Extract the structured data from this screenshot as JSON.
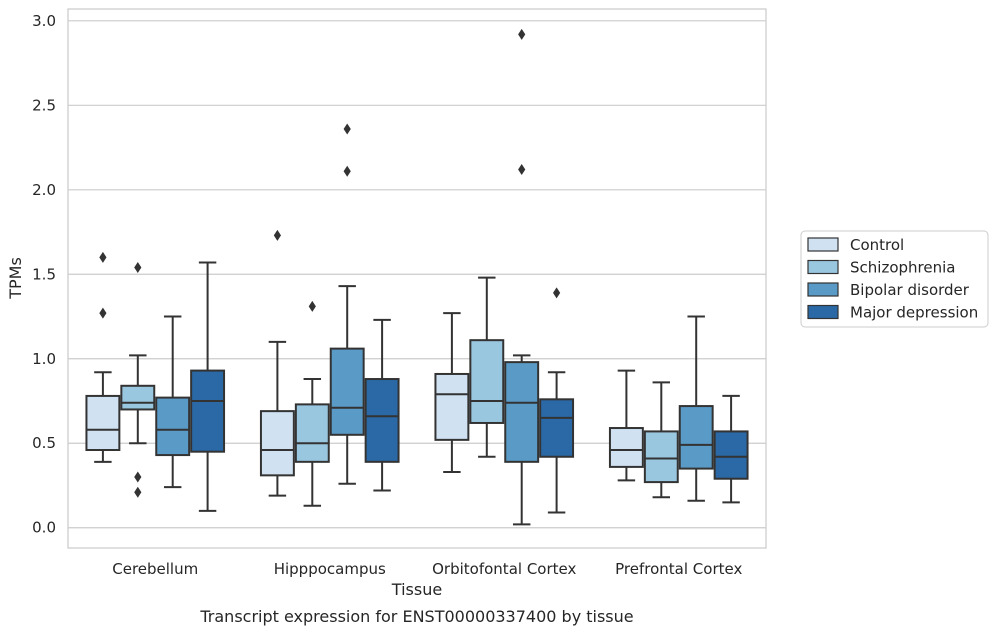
{
  "chart_data": {
    "type": "box",
    "title": "",
    "caption": "Transcript expression for ENST00000337400 by tissue",
    "xlabel": "Tissue",
    "ylabel": "TPMs",
    "ylim": [
      -0.12,
      3.07
    ],
    "yticks": [
      "0.0",
      "0.5",
      "1.0",
      "1.5",
      "2.0",
      "2.5",
      "3.0"
    ],
    "grid": true,
    "legend_position": "right",
    "categories": [
      "Cerebellum",
      "Hipppocampus",
      "Orbitofontal Cortex",
      "Prefrontal Cortex"
    ],
    "series": [
      {
        "name": "Control",
        "color": "#d0e1f2",
        "boxes": [
          {
            "whisker_low": 0.39,
            "q1": 0.46,
            "median": 0.58,
            "q3": 0.78,
            "whisker_high": 0.92,
            "outliers": [
              1.27,
              1.6
            ]
          },
          {
            "whisker_low": 0.19,
            "q1": 0.31,
            "median": 0.46,
            "q3": 0.69,
            "whisker_high": 1.1,
            "outliers": [
              1.73
            ]
          },
          {
            "whisker_low": 0.33,
            "q1": 0.52,
            "median": 0.79,
            "q3": 0.91,
            "whisker_high": 1.27,
            "outliers": []
          },
          {
            "whisker_low": 0.28,
            "q1": 0.36,
            "median": 0.46,
            "q3": 0.59,
            "whisker_high": 0.93,
            "outliers": []
          }
        ]
      },
      {
        "name": "Schizophrenia",
        "color": "#9ac7e0",
        "boxes": [
          {
            "whisker_low": 0.5,
            "q1": 0.7,
            "median": 0.74,
            "q3": 0.84,
            "whisker_high": 1.02,
            "outliers": [
              0.21,
              0.3,
              1.54
            ]
          },
          {
            "whisker_low": 0.13,
            "q1": 0.39,
            "median": 0.5,
            "q3": 0.73,
            "whisker_high": 0.88,
            "outliers": [
              1.31
            ]
          },
          {
            "whisker_low": 0.42,
            "q1": 0.62,
            "median": 0.75,
            "q3": 1.11,
            "whisker_high": 1.48,
            "outliers": []
          },
          {
            "whisker_low": 0.18,
            "q1": 0.27,
            "median": 0.41,
            "q3": 0.57,
            "whisker_high": 0.86,
            "outliers": []
          }
        ]
      },
      {
        "name": "Bipolar disorder",
        "color": "#5a9ac7",
        "boxes": [
          {
            "whisker_low": 0.24,
            "q1": 0.43,
            "median": 0.58,
            "q3": 0.77,
            "whisker_high": 1.25,
            "outliers": []
          },
          {
            "whisker_low": 0.26,
            "q1": 0.55,
            "median": 0.71,
            "q3": 1.06,
            "whisker_high": 1.43,
            "outliers": [
              2.11,
              2.36
            ]
          },
          {
            "whisker_low": 0.02,
            "q1": 0.39,
            "median": 0.74,
            "q3": 0.98,
            "whisker_high": 1.02,
            "outliers": [
              2.12,
              2.92
            ]
          },
          {
            "whisker_low": 0.16,
            "q1": 0.35,
            "median": 0.49,
            "q3": 0.72,
            "whisker_high": 1.25,
            "outliers": []
          }
        ]
      },
      {
        "name": "Major depression",
        "color": "#2a68a6",
        "boxes": [
          {
            "whisker_low": 0.1,
            "q1": 0.45,
            "median": 0.75,
            "q3": 0.93,
            "whisker_high": 1.57,
            "outliers": []
          },
          {
            "whisker_low": 0.22,
            "q1": 0.39,
            "median": 0.66,
            "q3": 0.88,
            "whisker_high": 1.23,
            "outliers": []
          },
          {
            "whisker_low": 0.09,
            "q1": 0.42,
            "median": 0.65,
            "q3": 0.76,
            "whisker_high": 0.92,
            "outliers": [
              1.39
            ]
          },
          {
            "whisker_low": 0.15,
            "q1": 0.29,
            "median": 0.42,
            "q3": 0.57,
            "whisker_high": 0.78,
            "outliers": []
          }
        ]
      }
    ],
    "colors": {
      "grid": "#cccccc",
      "spine": "#cccccc",
      "edge": "#333333",
      "text": "#262626"
    }
  }
}
